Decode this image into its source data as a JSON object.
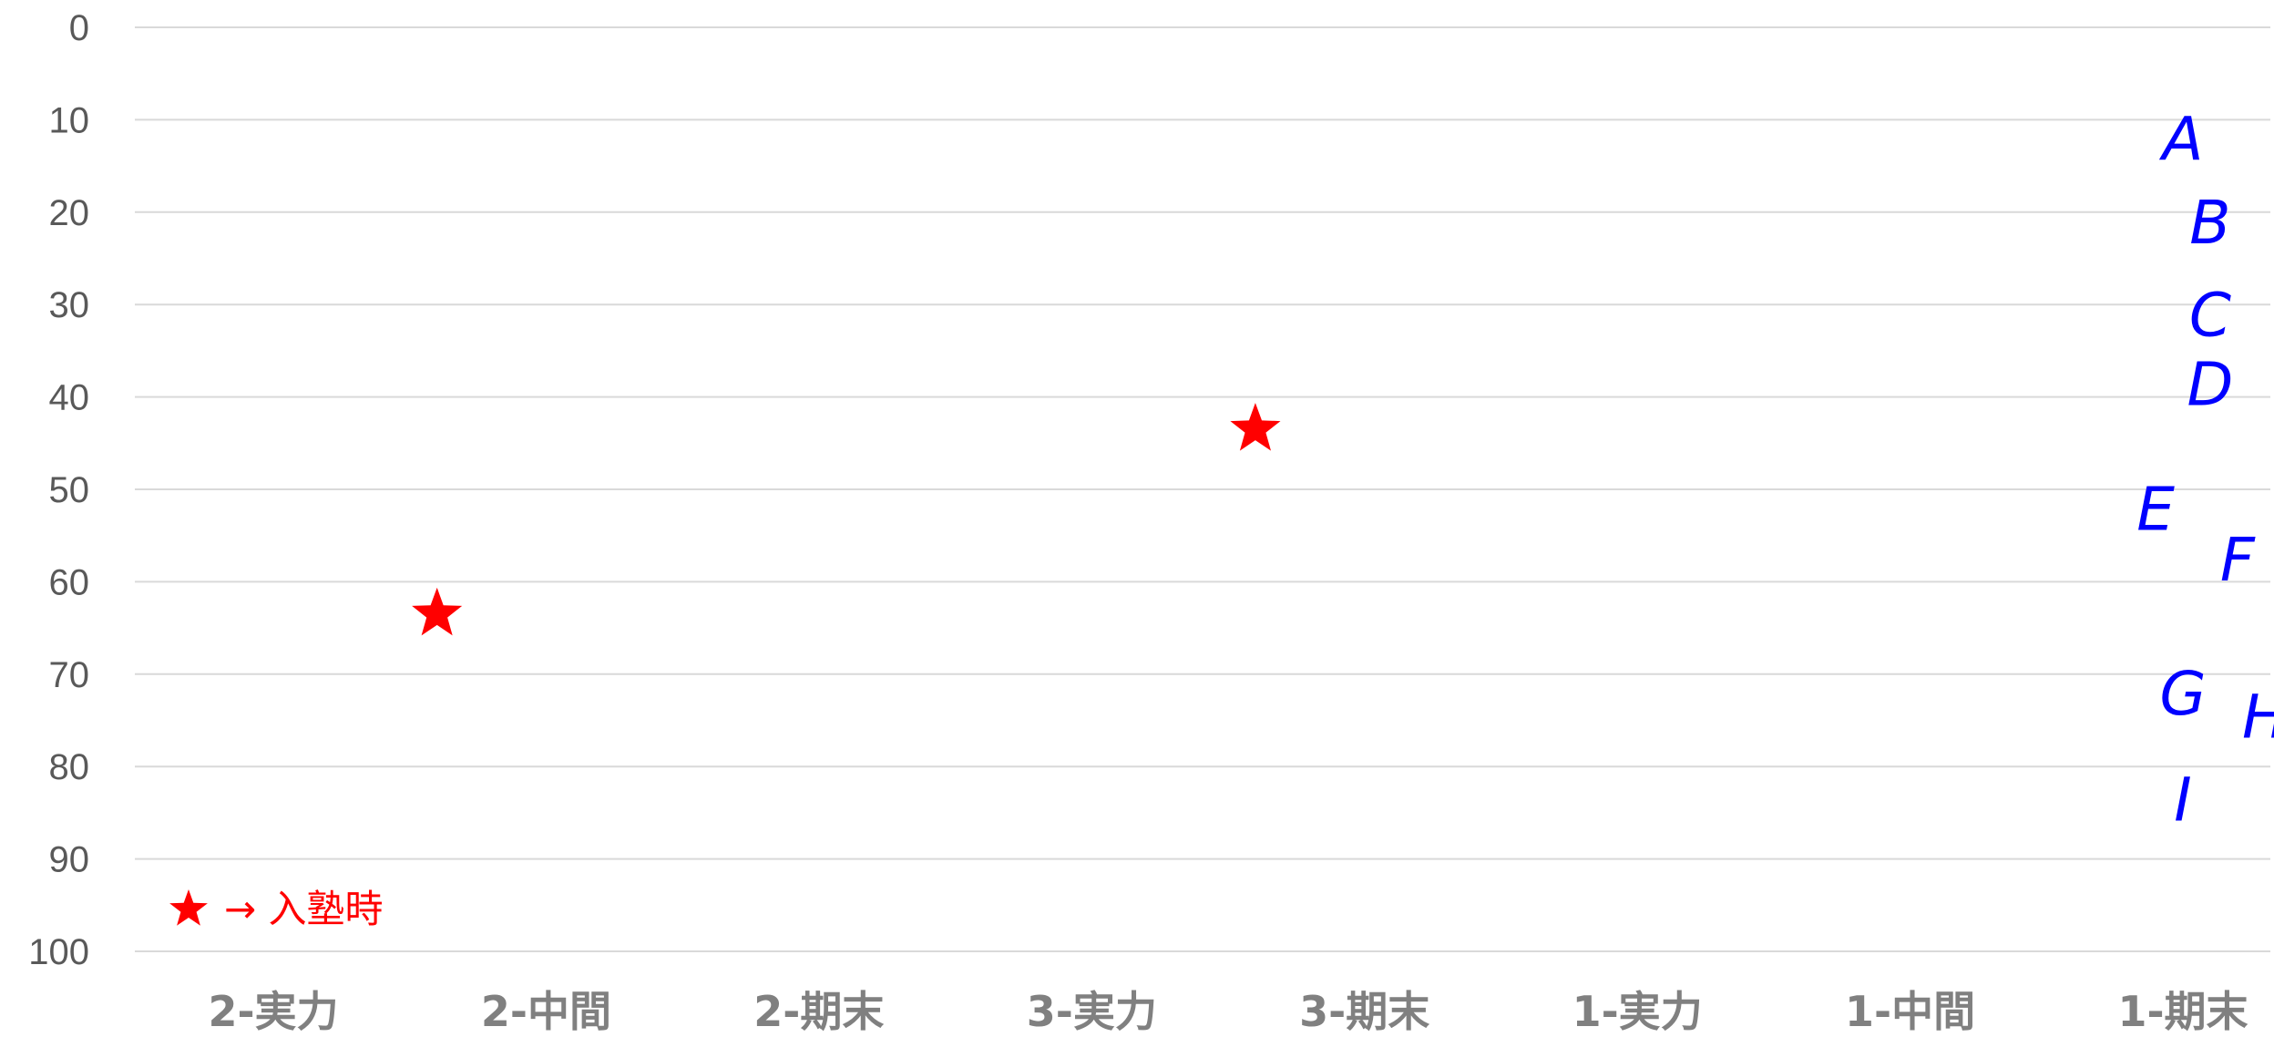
{
  "chart_data": {
    "type": "scatter",
    "title": "",
    "xlabel": "",
    "ylabel": "",
    "y_axis": {
      "min": 0,
      "max": 100,
      "step": 10,
      "inverted": true
    },
    "y_ticks": [
      "0",
      "10",
      "20",
      "30",
      "40",
      "50",
      "60",
      "70",
      "80",
      "90",
      "100"
    ],
    "categories": [
      "2-実力",
      "2-中間",
      "2-期末",
      "3-実力",
      "3-期末",
      "1-実力",
      "1-中間",
      "1-期末"
    ],
    "grid": true,
    "series": [
      {
        "marker": "star",
        "color": "#ff0000",
        "points": [
          {
            "x": 1.6,
            "y": 63.5
          },
          {
            "x": 4.6,
            "y": 43.5
          }
        ]
      }
    ],
    "annotations": [
      {
        "text": "A",
        "x": 8.0,
        "y": 12
      },
      {
        "text": "B",
        "x": 8.1,
        "y": 21
      },
      {
        "text": "C",
        "x": 8.1,
        "y": 31
      },
      {
        "text": "D",
        "x": 8.1,
        "y": 38.5
      },
      {
        "text": "E",
        "x": 7.9,
        "y": 52
      },
      {
        "text": "F",
        "x": 8.2,
        "y": 57.5
      },
      {
        "text": "G",
        "x": 8.0,
        "y": 72
      },
      {
        "text": "H",
        "x": 8.3,
        "y": 74.5
      },
      {
        "text": "I",
        "x": 8.0,
        "y": 83.5
      }
    ],
    "legend": {
      "symbol": "★",
      "text": "→ 入塾時",
      "position": "bottom-left",
      "color": "#ff0000"
    },
    "annotation_color": "#0000ff"
  }
}
